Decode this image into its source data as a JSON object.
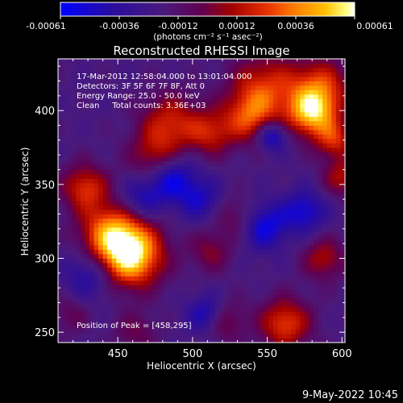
{
  "colorbar": {
    "ticks": [
      "-0.00061",
      "-0.00036",
      "-0.00012",
      "0.00012",
      "0.00036",
      "0.00061"
    ],
    "unit_label": "(photons cm⁻² s⁻¹ asec⁻²)"
  },
  "chart_data": {
    "type": "heatmap",
    "title": "Reconstructed RHESSI Image",
    "xlabel": "Heliocentric X (arcsec)",
    "ylabel": "Heliocentric Y (arcsec)",
    "xlim": [
      410,
      602
    ],
    "ylim": [
      243,
      435
    ],
    "xticks": [
      450,
      500,
      550,
      600
    ],
    "yticks": [
      250,
      300,
      350,
      400
    ],
    "color_range": [
      -0.00061,
      0.00061
    ],
    "colormap": [
      "#0000ff",
      "#2a0d9c",
      "#4a1a7c",
      "#600050",
      "#a00000",
      "#e83000",
      "#ff8000",
      "#ffc000",
      "#ffff80",
      "#ffffff"
    ],
    "peak_position": [
      458,
      295
    ],
    "sources": [
      {
        "x": 458,
        "y": 303,
        "intensity": 1.0,
        "width": 15
      },
      {
        "x": 444,
        "y": 318,
        "intensity": 0.55,
        "width": 14
      },
      {
        "x": 428,
        "y": 348,
        "intensity": 0.5,
        "width": 11
      },
      {
        "x": 475,
        "y": 368,
        "intensity": 0.42,
        "width": 12
      },
      {
        "x": 485,
        "y": 392,
        "intensity": 0.45,
        "width": 14
      },
      {
        "x": 512,
        "y": 385,
        "intensity": 0.4,
        "width": 11
      },
      {
        "x": 538,
        "y": 395,
        "intensity": 0.45,
        "width": 12
      },
      {
        "x": 548,
        "y": 415,
        "intensity": 0.5,
        "width": 16
      },
      {
        "x": 585,
        "y": 415,
        "intensity": 0.55,
        "width": 14
      },
      {
        "x": 580,
        "y": 398,
        "intensity": 0.7,
        "width": 11
      },
      {
        "x": 595,
        "y": 380,
        "intensity": 0.45,
        "width": 9
      },
      {
        "x": 600,
        "y": 355,
        "intensity": 0.38,
        "width": 9
      },
      {
        "x": 530,
        "y": 328,
        "intensity": 0.25,
        "width": 10
      },
      {
        "x": 512,
        "y": 305,
        "intensity": 0.28,
        "width": 10
      },
      {
        "x": 520,
        "y": 258,
        "intensity": 0.35,
        "width": 10
      },
      {
        "x": 562,
        "y": 256,
        "intensity": 0.55,
        "width": 12
      },
      {
        "x": 588,
        "y": 300,
        "intensity": 0.38,
        "width": 10
      },
      {
        "x": 462,
        "y": 250,
        "intensity": 0.22,
        "width": 10
      },
      {
        "x": 418,
        "y": 262,
        "intensity": 0.2,
        "width": 9
      }
    ],
    "negative_sources": [
      {
        "x": 485,
        "y": 355,
        "intensity": 0.5,
        "width": 12
      },
      {
        "x": 553,
        "y": 383,
        "intensity": 0.5,
        "width": 7
      },
      {
        "x": 548,
        "y": 322,
        "intensity": 0.45,
        "width": 11
      },
      {
        "x": 575,
        "y": 332,
        "intensity": 0.4,
        "width": 10
      },
      {
        "x": 510,
        "y": 262,
        "intensity": 0.45,
        "width": 9
      },
      {
        "x": 432,
        "y": 290,
        "intensity": 0.35,
        "width": 12
      },
      {
        "x": 465,
        "y": 340,
        "intensity": 0.3,
        "width": 10
      },
      {
        "x": 505,
        "y": 340,
        "intensity": 0.3,
        "width": 10
      }
    ]
  },
  "annotations": {
    "line1": "17-Mar-2012 12:58:04.000 to 13:01:04.000",
    "line2": "Detectors: 3F 5F 6F 7F 8F, Att 0",
    "line3": "Energy Range: 25.0 - 50.0 keV",
    "line4": "Clean     Total counts: 3.36E+03",
    "peak": "Position of Peak = [458,295]"
  },
  "footer": {
    "date": "9-May-2022 10:45"
  }
}
